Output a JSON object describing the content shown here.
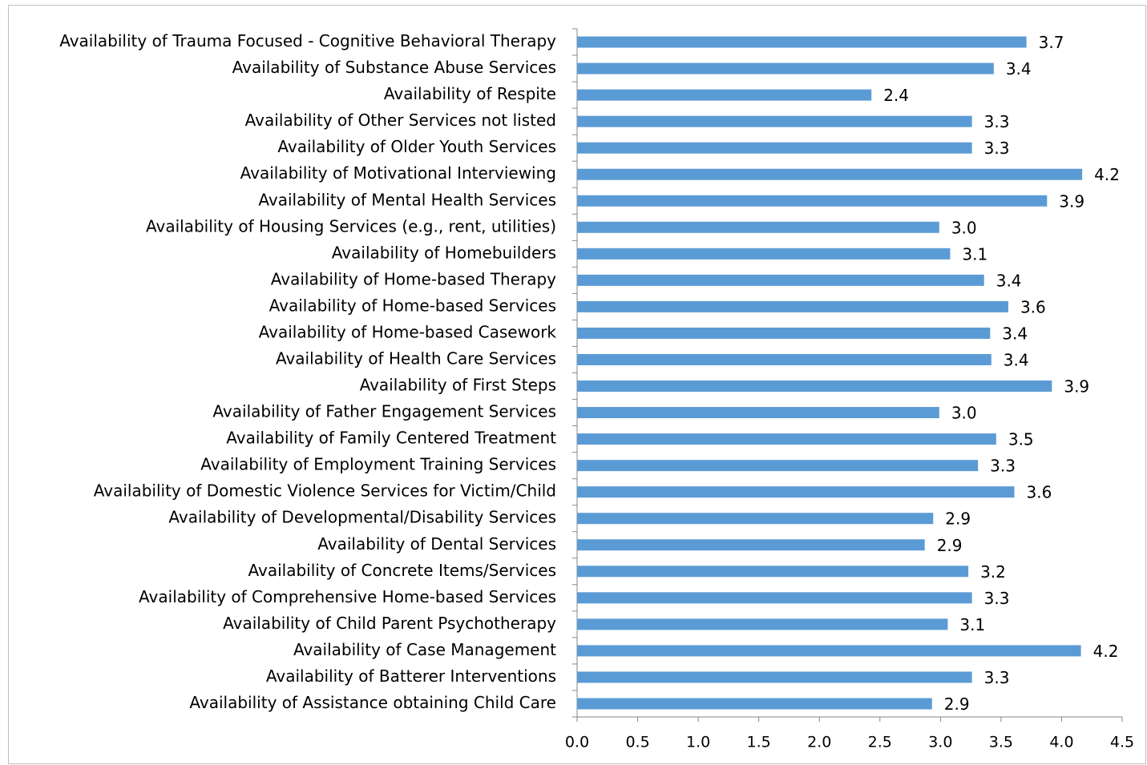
{
  "chart_data": {
    "type": "bar",
    "orientation": "horizontal",
    "categories": [
      "Availability of Trauma Focused - Cognitive Behavioral Therapy",
      "Availability of Substance Abuse Services",
      "Availability of Respite",
      "Availability of Other Services not listed",
      "Availability of Older Youth Services",
      "Availability of Motivational Interviewing",
      "Availability of Mental Health Services",
      "Availability of Housing Services (e.g., rent, utilities)",
      "Availability of Homebuilders",
      "Availability of Home-based Therapy",
      "Availability of Home-based Services",
      "Availability of Home-based Casework",
      "Availability of Health Care Services",
      "Availability of First Steps",
      "Availability of Father Engagement Services",
      "Availability of Family Centered Treatment",
      "Availability of Employment Training Services",
      "Availability of Domestic Violence Services for Victim/Child",
      "Availability of Developmental/Disability Services",
      "Availability of Dental Services",
      "Availability of Concrete Items/Services",
      "Availability of Comprehensive Home-based Services",
      "Availability of Child Parent Psychotherapy",
      "Availability of Case Management",
      "Availability of Batterer Interventions",
      "Availability of Assistance obtaining Child Care"
    ],
    "values": [
      3.71,
      3.44,
      2.43,
      3.26,
      3.26,
      4.17,
      3.88,
      2.99,
      3.08,
      3.36,
      3.56,
      3.41,
      3.42,
      3.92,
      2.99,
      3.46,
      3.31,
      3.61,
      2.94,
      2.87,
      3.23,
      3.26,
      3.06,
      4.16,
      3.26,
      2.93
    ],
    "value_labels": [
      "3.7",
      "3.4",
      "2.4",
      "3.3",
      "3.3",
      "4.2",
      "3.9",
      "3.0",
      "3.1",
      "3.4",
      "3.6",
      "3.4",
      "3.4",
      "3.9",
      "3.0",
      "3.5",
      "3.3",
      "3.6",
      "2.9",
      "2.9",
      "3.2",
      "3.3",
      "3.1",
      "4.2",
      "3.3",
      "2.9"
    ],
    "color": "#5b9bd5",
    "xlim": [
      0,
      4.5
    ],
    "xticks": [
      {
        "value": 0,
        "label": "0.0"
      },
      0.5,
      {
        "value": 1,
        "label": "1.0"
      },
      1.5,
      {
        "value": 2,
        "label": "2.0"
      },
      2.5,
      {
        "value": 3,
        "label": "3.0"
      },
      3.5,
      {
        "value": 4,
        "label": "4.0"
      },
      4.5
    ]
  }
}
